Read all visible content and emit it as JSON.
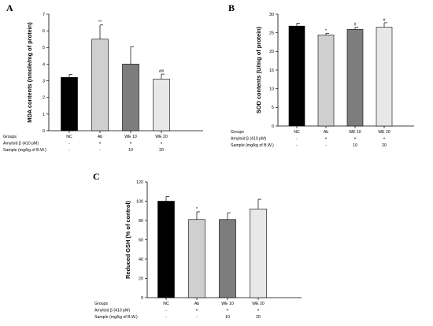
{
  "chart_data": [
    {
      "type": "bar",
      "panel": "A",
      "categories": [
        "NC",
        "Ab",
        "WE 10",
        "WE 20"
      ],
      "values": [
        3.2,
        5.5,
        4.0,
        3.1
      ],
      "errors": [
        0.18,
        0.85,
        1.05,
        0.3
      ],
      "significance": [
        "",
        "**",
        "",
        "##"
      ],
      "colors": [
        "#000000",
        "#cfcfcf",
        "#7d7d7d",
        "#e8e8e8"
      ],
      "ylabel": "MDA contents (nmole/mg of protein)",
      "ylim": [
        0,
        7
      ],
      "yticks": [
        0,
        1,
        2,
        3,
        4,
        5,
        6,
        7
      ],
      "grid": false,
      "rows": [
        {
          "label": "Groups",
          "cells": [
            "NC",
            "Ab",
            "WE 10",
            "WE 20"
          ]
        },
        {
          "label": "Amyloid β (410 pM)",
          "cells": [
            "-",
            "+",
            "+",
            "+"
          ]
        },
        {
          "label": "Sample (mg/kg of B.W.)",
          "cells": [
            "-",
            "-",
            "10",
            "20"
          ]
        }
      ]
    },
    {
      "type": "bar",
      "panel": "B",
      "categories": [
        "NC",
        "Ab",
        "WE 10",
        "WE 20"
      ],
      "values": [
        26.8,
        24.4,
        25.9,
        26.5
      ],
      "errors": [
        0.8,
        0.45,
        0.6,
        1.2
      ],
      "significance": [
        "",
        "*",
        "#",
        "#"
      ],
      "colors": [
        "#000000",
        "#cfcfcf",
        "#7d7d7d",
        "#e8e8e8"
      ],
      "ylabel": "SOD contents (U/mg of protein)",
      "ylim": [
        0,
        30
      ],
      "yticks": [
        0,
        5,
        10,
        15,
        20,
        25,
        30
      ],
      "grid": false,
      "rows": [
        {
          "label": "Groups",
          "cells": [
            "NC",
            "Ab",
            "WE 10",
            "WE 20"
          ]
        },
        {
          "label": "Amyloid β (410 pM)",
          "cells": [
            "-",
            "+",
            "+",
            "+"
          ]
        },
        {
          "label": "Sample (mg/kg of B.W.)",
          "cells": [
            "-",
            "-",
            "10",
            "20"
          ]
        }
      ]
    },
    {
      "type": "bar",
      "panel": "C",
      "categories": [
        "NC",
        "Ab",
        "WE 10",
        "WE 20"
      ],
      "values": [
        100,
        81,
        81,
        92
      ],
      "errors": [
        5,
        8,
        7,
        10
      ],
      "significance": [
        "",
        "*",
        "",
        ""
      ],
      "colors": [
        "#000000",
        "#cfcfcf",
        "#7d7d7d",
        "#e8e8e8"
      ],
      "ylabel": "Reduced GSH (% of control)",
      "ylim": [
        0,
        120
      ],
      "yticks": [
        0,
        20,
        40,
        60,
        80,
        100,
        120
      ],
      "grid": false,
      "rows": [
        {
          "label": "Groups",
          "cells": [
            "NC",
            "Ab",
            "WE 10",
            "WE 20"
          ]
        },
        {
          "label": "Amyloid β (410 pM)",
          "cells": [
            "-",
            "+",
            "+",
            "+"
          ]
        },
        {
          "label": "Sample (mg/kg of B.W.)",
          "cells": [
            "-",
            "-",
            "10",
            "20"
          ]
        }
      ]
    }
  ]
}
